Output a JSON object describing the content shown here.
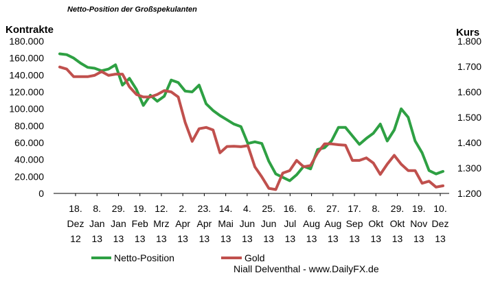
{
  "chart_data": {
    "type": "line",
    "title": "Netto-Position  der Großspekulanten",
    "y_left_label": "Kontrakte",
    "y_right_label": "Kurs",
    "y_left_lim": [
      0,
      180000
    ],
    "y_right_lim": [
      1200,
      1800
    ],
    "y_left_ticks": [
      "0",
      "20.000",
      "40.000",
      "60.000",
      "80.000",
      "100.000",
      "120.000",
      "140.000",
      "160.000",
      "180.000"
    ],
    "y_right_ticks": [
      "1.200",
      "1.300",
      "1.400",
      "1.500",
      "1.600",
      "1.700",
      "1.800"
    ],
    "x_ticks": [
      [
        "18.",
        "Dez",
        "12"
      ],
      [
        "8.",
        "Jan",
        "13"
      ],
      [
        "29.",
        "Jan",
        "13"
      ],
      [
        "19.",
        "Feb",
        "13"
      ],
      [
        "12.",
        "Mrz",
        "13"
      ],
      [
        "2.",
        "Apr",
        "13"
      ],
      [
        "23.",
        "Apr",
        "13"
      ],
      [
        "14.",
        "Mai",
        "13"
      ],
      [
        "4.",
        "Jun",
        "13"
      ],
      [
        "25.",
        "Jun",
        "13"
      ],
      [
        "16.",
        "Jul",
        "13"
      ],
      [
        "6.",
        "Aug",
        "13"
      ],
      [
        "27.",
        "Aug",
        "13"
      ],
      [
        "17.",
        "Sep",
        "13"
      ],
      [
        "8.",
        "Okt",
        "13"
      ],
      [
        "29.",
        "Okt",
        "13"
      ],
      [
        "19.",
        "Nov",
        "13"
      ],
      [
        "10.",
        "Dez",
        "13"
      ]
    ],
    "series": [
      {
        "name": "Netto-Position",
        "axis": "left",
        "color": "#2ea043",
        "values": [
          165000,
          164000,
          160000,
          154000,
          149000,
          148000,
          145000,
          147000,
          152000,
          128000,
          136000,
          123000,
          104000,
          116000,
          109000,
          115000,
          134000,
          131000,
          121000,
          120000,
          128000,
          106000,
          98000,
          92000,
          87000,
          82000,
          79000,
          59000,
          61000,
          59000,
          38000,
          23000,
          19000,
          15000,
          22000,
          32000,
          29000,
          52000,
          54000,
          62000,
          78000,
          78000,
          68000,
          58000,
          65000,
          71000,
          82000,
          62000,
          75000,
          100000,
          90000,
          62000,
          48000,
          27000,
          23000,
          26000
        ]
      },
      {
        "name": "Gold",
        "axis": "right",
        "color": "#c0504d",
        "values": [
          1698,
          1690,
          1660,
          1660,
          1660,
          1665,
          1680,
          1665,
          1670,
          1670,
          1620,
          1590,
          1580,
          1580,
          1590,
          1605,
          1600,
          1580,
          1480,
          1405,
          1455,
          1460,
          1450,
          1360,
          1385,
          1386,
          1384,
          1388,
          1305,
          1265,
          1220,
          1215,
          1280,
          1290,
          1330,
          1305,
          1310,
          1360,
          1395,
          1395,
          1392,
          1390,
          1330,
          1330,
          1340,
          1320,
          1275,
          1315,
          1350,
          1315,
          1290,
          1290,
          1240,
          1248,
          1225,
          1230
        ]
      }
    ],
    "legend_position": "bottom",
    "credit": "Niall Delventhal - www.DailyFX.de"
  }
}
